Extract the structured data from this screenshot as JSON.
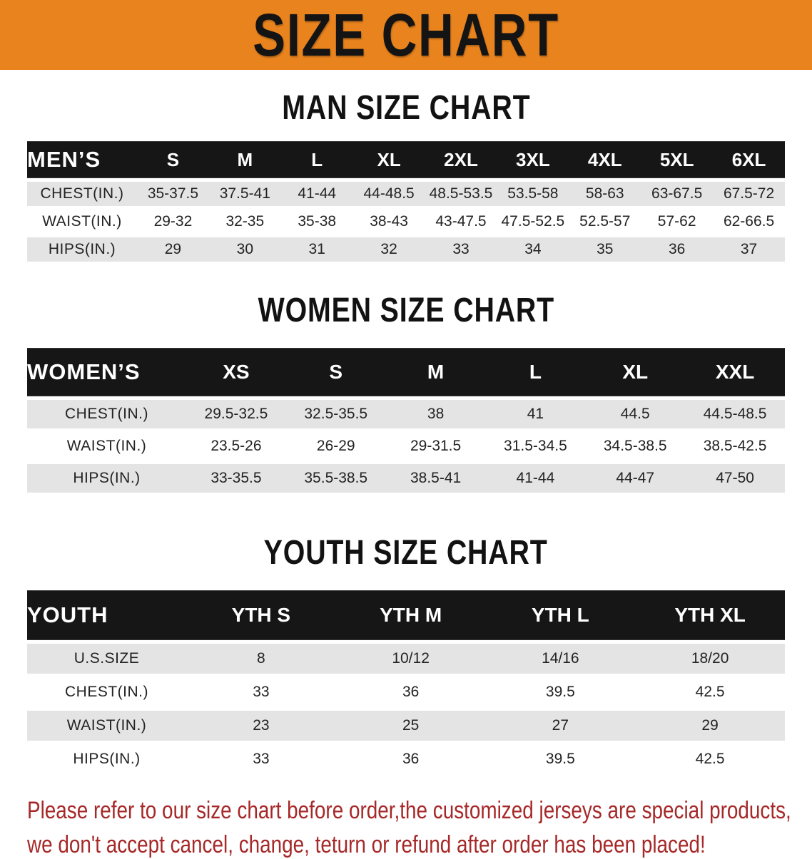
{
  "banner": {
    "title": "SIZE CHART"
  },
  "colors": {
    "banner_bg": "#E8831E",
    "header_bar_bg": "#161616",
    "row_stripe": "#E4E4E5",
    "disclaimer_text": "#A62828"
  },
  "men": {
    "heading": "MAN SIZE CHART",
    "table": {
      "header": [
        "MEN’S",
        "S",
        "M",
        "L",
        "XL",
        "2XL",
        "3XL",
        "4XL",
        "5XL",
        "6XL"
      ],
      "rows": [
        {
          "label": "CHEST(IN.)",
          "values": [
            "35-37.5",
            "37.5-41",
            "41-44",
            "44-48.5",
            "48.5-53.5",
            "53.5-58",
            "58-63",
            "63-67.5",
            "67.5-72"
          ]
        },
        {
          "label": "WAIST(IN.)",
          "values": [
            "29-32",
            "32-35",
            "35-38",
            "38-43",
            "43-47.5",
            "47.5-52.5",
            "52.5-57",
            "57-62",
            "62-66.5"
          ]
        },
        {
          "label": "HIPS(IN.)",
          "values": [
            "29",
            "30",
            "31",
            "32",
            "33",
            "34",
            "35",
            "36",
            "37"
          ]
        }
      ]
    }
  },
  "women": {
    "heading": "WOMEN SIZE CHART",
    "table": {
      "header": [
        "WOMEN’S",
        "XS",
        "S",
        "M",
        "L",
        "XL",
        "XXL"
      ],
      "rows": [
        {
          "label": "CHEST(IN.)",
          "values": [
            "29.5-32.5",
            "32.5-35.5",
            "38",
            "41",
            "44.5",
            "44.5-48.5"
          ]
        },
        {
          "label": "WAIST(IN.)",
          "values": [
            "23.5-26",
            "26-29",
            "29-31.5",
            "31.5-34.5",
            "34.5-38.5",
            "38.5-42.5"
          ]
        },
        {
          "label": "HIPS(IN.)",
          "values": [
            "33-35.5",
            "35.5-38.5",
            "38.5-41",
            "41-44",
            "44-47",
            "47-50"
          ]
        }
      ]
    }
  },
  "youth": {
    "heading": "YOUTH SIZE CHART",
    "table": {
      "header": [
        "YOUTH",
        "YTH S",
        "YTH M",
        "YTH L",
        "YTH XL"
      ],
      "rows": [
        {
          "label": "U.S.SIZE",
          "values": [
            "8",
            "10/12",
            "14/16",
            "18/20"
          ]
        },
        {
          "label": "CHEST(IN.)",
          "values": [
            "33",
            "36",
            "39.5",
            "42.5"
          ]
        },
        {
          "label": "WAIST(IN.)",
          "values": [
            "23",
            "25",
            "27",
            "29"
          ]
        },
        {
          "label": "HIPS(IN.)",
          "values": [
            "33",
            "36",
            "39.5",
            "42.5"
          ]
        }
      ]
    }
  },
  "disclaimer": {
    "line1": "Please refer to our size chart before order,the customized jerseys are special products,",
    "line2": "we don't accept cancel, change, teturn or refund after order has been placed!"
  }
}
